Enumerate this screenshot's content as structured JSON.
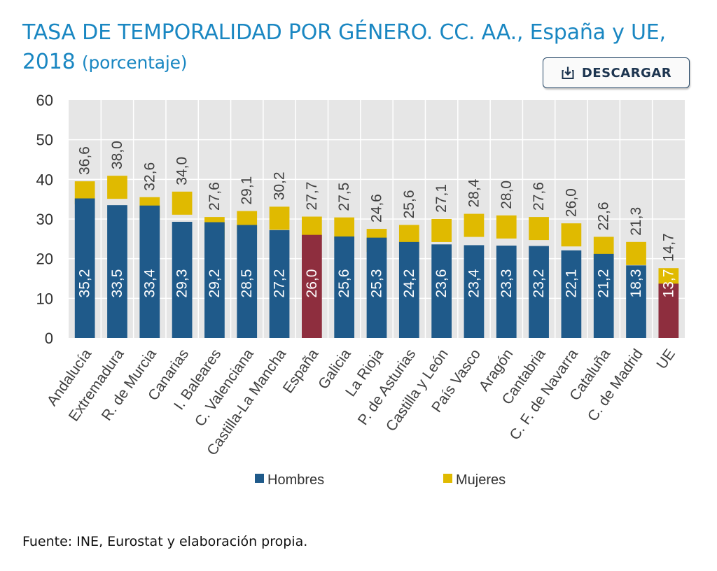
{
  "header": {
    "title": "TASA DE TEMPORALIDAD POR GÉNERO. CC. AA., España y UE, 2018",
    "unit": "(porcentaje)"
  },
  "toolbar": {
    "download_label": "DESCARGAR",
    "download_icon": "download-icon"
  },
  "footer": {
    "source": "Fuente: INE, Eurostat y elaboración propia."
  },
  "colors": {
    "hombres": "#1f5a8a",
    "mujeres": "#e0ba00",
    "highlight": "#8e2e3e",
    "panel": "#e6e6e6",
    "grid": "#ffffff",
    "title": "#1a87c2"
  },
  "chart_data": {
    "type": "bar",
    "title": "TASA DE TEMPORALIDAD POR GÉNERO. CC. AA., España y UE, 2018",
    "xlabel": "",
    "ylabel": "",
    "ylim": [
      0,
      60
    ],
    "yticks": [
      "0",
      "10",
      "20",
      "30",
      "40",
      "50",
      "60"
    ],
    "grid": true,
    "legend": "bottom",
    "categories": [
      "Andalucía",
      "Extremadura",
      "R. de Murcia",
      "Canarias",
      "I. Baleares",
      "C. Valenciana",
      "Castilla-La Mancha",
      "España",
      "Galicia",
      "La Rioja",
      "P. de Asturias",
      "Castilla y León",
      "País Vasco",
      "Aragón",
      "Cantabria",
      "C. F. de Navarra",
      "Cataluña",
      "C. de Madrid",
      "UE"
    ],
    "highlighted": [
      "España",
      "UE"
    ],
    "series": [
      {
        "name": "Hombres",
        "values": [
          35.2,
          33.5,
          33.4,
          29.3,
          29.2,
          28.5,
          27.2,
          26.0,
          25.6,
          25.3,
          24.2,
          23.6,
          23.4,
          23.3,
          23.2,
          22.1,
          21.2,
          18.3,
          13.7
        ],
        "labels": [
          "35,2",
          "33,5",
          "33,4",
          "29,3",
          "29,2",
          "28,5",
          "27,2",
          "26,0",
          "25,6",
          "25,3",
          "24,2",
          "23,6",
          "23,4",
          "23,3",
          "23,2",
          "22,1",
          "21,2",
          "18,3",
          "13,7"
        ]
      },
      {
        "name": "Mujeres",
        "values": [
          36.6,
          38.0,
          32.6,
          34.0,
          27.6,
          29.1,
          30.2,
          27.7,
          27.5,
          24.6,
          25.6,
          27.1,
          28.4,
          28.0,
          27.6,
          26.0,
          22.6,
          21.3,
          14.7
        ],
        "labels": [
          "36,6",
          "38,0",
          "32,6",
          "34,0",
          "27,6",
          "29,1",
          "30,2",
          "27,7",
          "27,5",
          "24,6",
          "25,6",
          "27,1",
          "28,4",
          "28,0",
          "27,6",
          "26,0",
          "22,6",
          "21,3",
          "14,7"
        ]
      }
    ]
  }
}
